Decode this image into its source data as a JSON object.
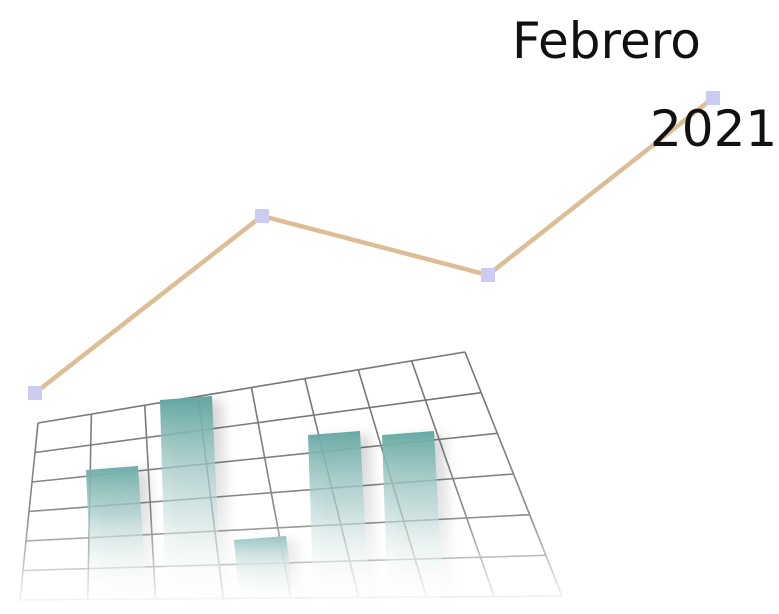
{
  "title": {
    "month": "Febrero",
    "year": "2021"
  },
  "chart_data": {
    "type": "line",
    "series": [
      {
        "values": [
          1,
          4,
          3,
          6
        ]
      }
    ],
    "bars": [
      4,
      6,
      2,
      5,
      5
    ],
    "grid": true
  },
  "colors": {
    "line": "#dcbd96",
    "marker": "#ccccf2",
    "bar_top": "#62a5a0",
    "bar_bottom": "#ffffff",
    "grid": "#777777",
    "text": "#111111"
  }
}
